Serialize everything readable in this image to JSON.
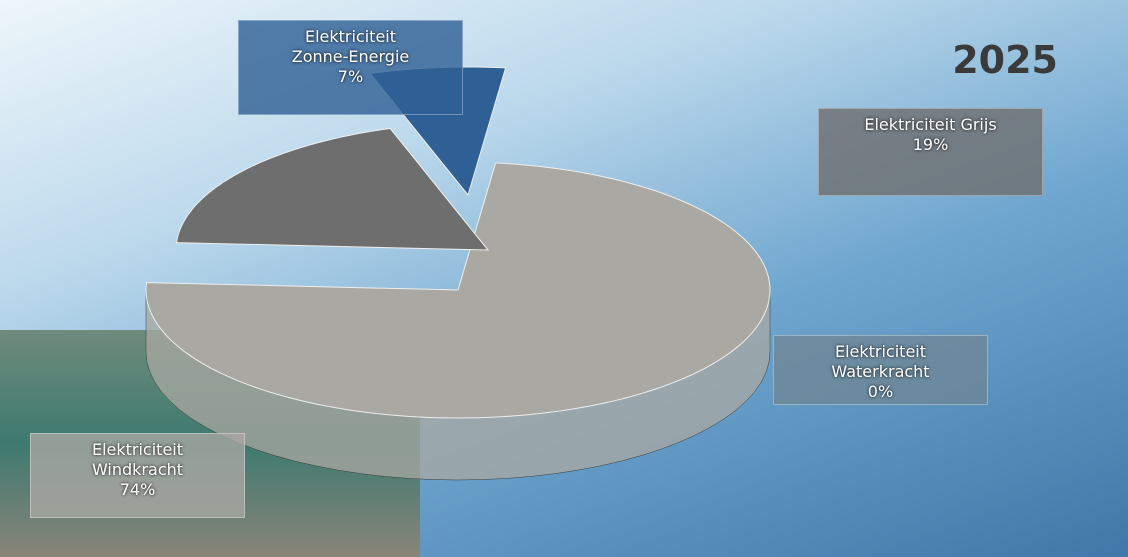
{
  "chart_data": {
    "type": "pie",
    "title": "2025",
    "categories": [
      "Elektriciteit Windkracht",
      "Elektriciteit Grijs",
      "Elektriciteit Zonne-Energie",
      "Elektriciteit Waterkracht"
    ],
    "values": [
      74,
      19,
      7,
      0
    ],
    "value_labels": [
      "74%",
      "19%",
      "7%",
      "0%"
    ],
    "colors": [
      "#a9a8a2",
      "#6e6e6e",
      "#2e5f95",
      "#6f8796"
    ]
  }
}
